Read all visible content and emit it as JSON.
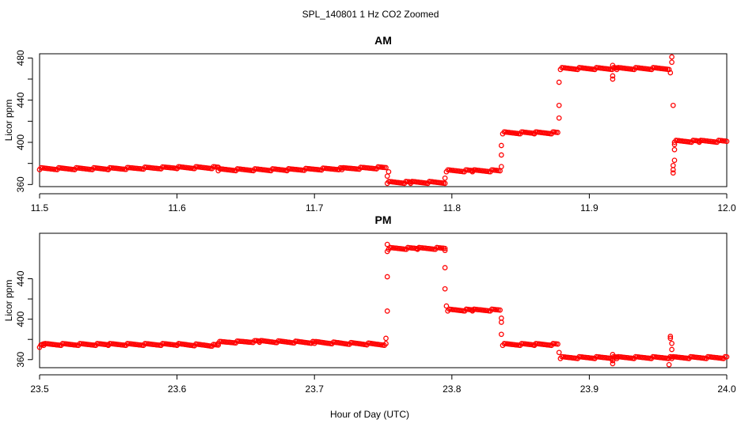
{
  "figure": {
    "title": "SPL_140801  1 Hz CO2 Zoomed",
    "xlabel": "Hour of Day (UTC)"
  },
  "colors": {
    "points": "#ff0000",
    "axis": "#000000"
  },
  "chart_data": [
    {
      "type": "scatter",
      "title": "AM",
      "xlabel": "",
      "ylabel": "Licor ppm",
      "xlim": [
        11.5,
        12.0
      ],
      "ylim": [
        358,
        484
      ],
      "xticks": [
        "11.5",
        "11.6",
        "11.7",
        "11.8",
        "11.9",
        "12.0"
      ],
      "yticks": [
        "360",
        "400",
        "440",
        "480"
      ],
      "series": [
        {
          "segments": [
            {
              "x": [
                11.5,
                11.55,
                11.6,
                11.63
              ],
              "y": [
                375,
                375,
                376,
                376
              ]
            },
            {
              "x": [
                11.63,
                11.68,
                11.72,
                11.752
              ],
              "y": [
                374,
                374,
                375,
                376
              ]
            },
            {
              "x": [
                11.753,
                11.77,
                11.795
              ],
              "y": [
                362,
                362,
                362
              ]
            },
            {
              "x": [
                11.796,
                11.815,
                11.835
              ],
              "y": [
                373,
                373,
                373
              ]
            },
            {
              "x": [
                11.837,
                11.86,
                11.877
              ],
              "y": [
                409,
                409,
                409
              ]
            },
            {
              "x": [
                11.879,
                11.92,
                11.958
              ],
              "y": [
                470,
                470,
                470
              ]
            },
            {
              "x": [
                11.962,
                11.98,
                12.0
              ],
              "y": [
                401,
                401,
                401
              ]
            }
          ],
          "outliers": [
            {
              "x": 11.753,
              "y": 368
            },
            {
              "x": 11.754,
              "y": 372
            },
            {
              "x": 11.795,
              "y": 366
            },
            {
              "x": 11.836,
              "y": 377
            },
            {
              "x": 11.836,
              "y": 388
            },
            {
              "x": 11.836,
              "y": 397
            },
            {
              "x": 11.878,
              "y": 423
            },
            {
              "x": 11.878,
              "y": 435
            },
            {
              "x": 11.878,
              "y": 457
            },
            {
              "x": 11.917,
              "y": 460
            },
            {
              "x": 11.917,
              "y": 463
            },
            {
              "x": 11.917,
              "y": 473
            },
            {
              "x": 11.959,
              "y": 466
            },
            {
              "x": 11.96,
              "y": 476
            },
            {
              "x": 11.96,
              "y": 481
            },
            {
              "x": 11.961,
              "y": 435
            },
            {
              "x": 11.961,
              "y": 371
            },
            {
              "x": 11.961,
              "y": 374
            },
            {
              "x": 11.961,
              "y": 378
            },
            {
              "x": 11.962,
              "y": 383
            },
            {
              "x": 11.962,
              "y": 393
            },
            {
              "x": 11.962,
              "y": 398
            }
          ]
        }
      ]
    },
    {
      "type": "scatter",
      "title": "PM",
      "xlabel": "",
      "ylabel": "Licor ppm",
      "xlim": [
        23.5,
        24.0
      ],
      "ylim": [
        352,
        485
      ],
      "xticks": [
        "23.5",
        "23.6",
        "23.7",
        "23.8",
        "23.9",
        "24.0"
      ],
      "yticks": [
        "360",
        "400",
        "440"
      ],
      "series": [
        {
          "segments": [
            {
              "x": [
                23.5,
                23.503,
                23.55,
                23.6,
                23.63
              ],
              "y": [
                373,
                375,
                375,
                375,
                374
              ]
            },
            {
              "x": [
                23.63,
                23.66,
                23.7,
                23.752
              ],
              "y": [
                377,
                378,
                377,
                375
              ]
            },
            {
              "x": [
                23.754,
                23.775,
                23.795
              ],
              "y": [
                470,
                470,
                470
              ]
            },
            {
              "x": [
                23.797,
                23.815,
                23.835
              ],
              "y": [
                409,
                409,
                409
              ]
            },
            {
              "x": [
                23.837,
                23.86,
                23.877
              ],
              "y": [
                375,
                375,
                375
              ]
            },
            {
              "x": [
                23.879,
                23.92,
                23.96,
                24.0
              ],
              "y": [
                362,
                362,
                362,
                362
              ]
            }
          ],
          "outliers": [
            {
              "x": 23.752,
              "y": 381
            },
            {
              "x": 23.753,
              "y": 408
            },
            {
              "x": 23.753,
              "y": 442
            },
            {
              "x": 23.753,
              "y": 467
            },
            {
              "x": 23.753,
              "y": 474
            },
            {
              "x": 23.795,
              "y": 430
            },
            {
              "x": 23.795,
              "y": 451
            },
            {
              "x": 23.795,
              "y": 468
            },
            {
              "x": 23.796,
              "y": 413
            },
            {
              "x": 23.836,
              "y": 385
            },
            {
              "x": 23.836,
              "y": 397
            },
            {
              "x": 23.836,
              "y": 401
            },
            {
              "x": 23.878,
              "y": 367
            },
            {
              "x": 23.917,
              "y": 356
            },
            {
              "x": 23.917,
              "y": 359
            },
            {
              "x": 23.917,
              "y": 365
            },
            {
              "x": 23.958,
              "y": 355
            },
            {
              "x": 23.959,
              "y": 381
            },
            {
              "x": 23.959,
              "y": 383
            },
            {
              "x": 23.96,
              "y": 370
            },
            {
              "x": 23.96,
              "y": 376
            }
          ]
        }
      ]
    }
  ]
}
